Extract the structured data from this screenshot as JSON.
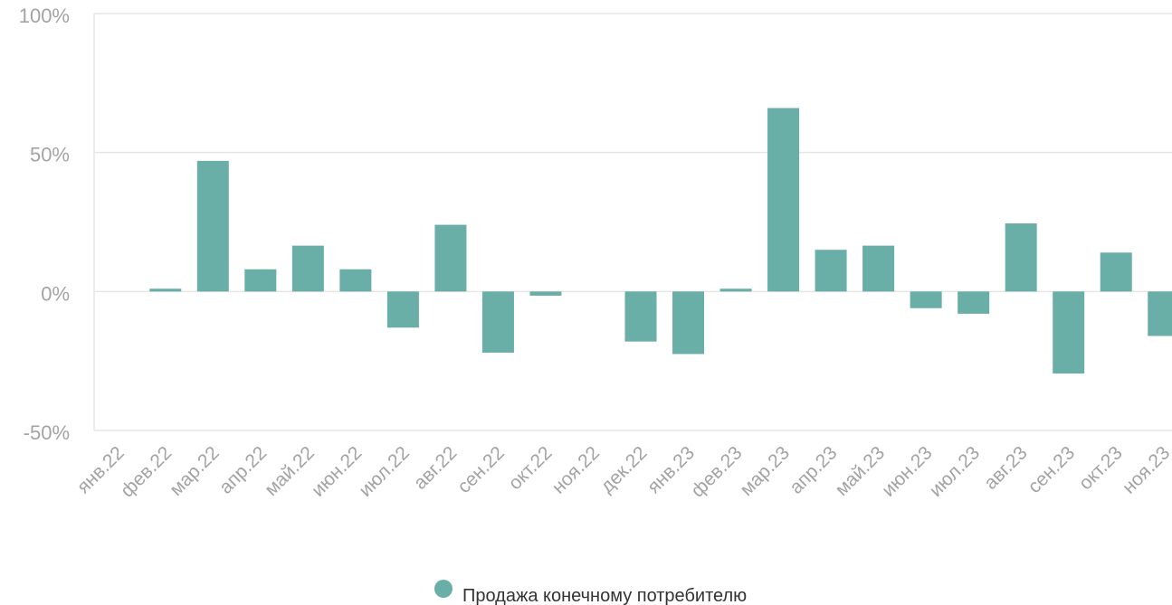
{
  "chart_data": {
    "type": "bar",
    "categories": [
      "янв.22",
      "фев.22",
      "мар.22",
      "апр.22",
      "май.22",
      "июн.22",
      "июл.22",
      "авг.22",
      "сен.22",
      "окт.22",
      "ноя.22",
      "дек.22",
      "янв.23",
      "фев.23",
      "мар.23",
      "апр.23",
      "май.23",
      "июн.23",
      "июл.23",
      "авг.23",
      "сен.23",
      "окт.23",
      "ноя.23"
    ],
    "series": [
      {
        "name": "Продажа конечному потребителю",
        "values": [
          0,
          1,
          47,
          8,
          16.5,
          8,
          -13,
          24,
          -22,
          -1.5,
          0,
          -18,
          -22.5,
          1,
          66,
          15,
          16.5,
          -6,
          -8,
          24.5,
          -29.5,
          14,
          -16
        ],
        "color": "#6aaea8"
      }
    ],
    "yticks": [
      "100%",
      "50%",
      "0%",
      "-50%"
    ],
    "ylim": [
      -50,
      100
    ],
    "ytick_values": [
      100,
      50,
      0,
      -50
    ],
    "grid": true,
    "legend_position": "bottom-center",
    "title": "",
    "xlabel": "",
    "ylabel": ""
  }
}
